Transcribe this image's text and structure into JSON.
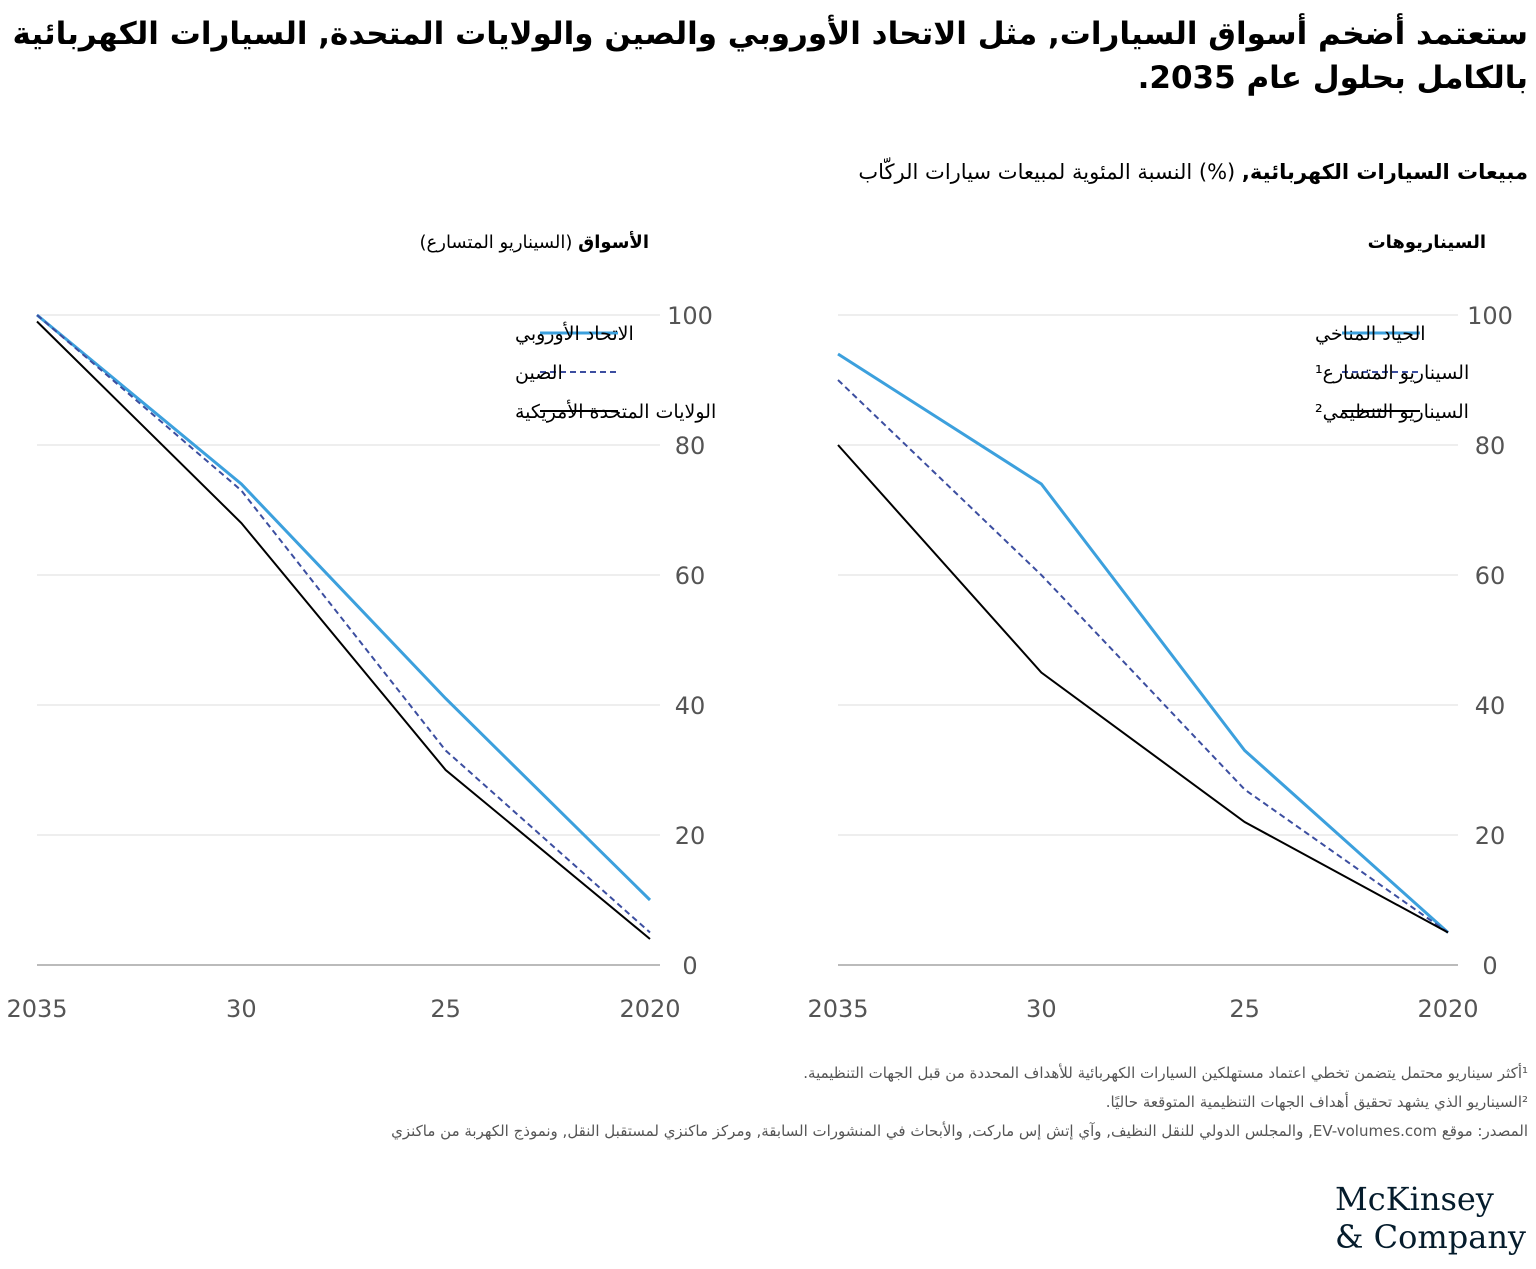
{
  "title": "ستعتمد أضخم أسواق السيارات, مثل الاتحاد الأوروبي والصين والولايات المتحدة, السيارات الكهربائية بالكامل بحلول عام 2035.",
  "subtitle_bold": "مبيعات السيارات الكهربائية,",
  "subtitle_rest": " (%) النسبة المئوية لمبيعات سيارات الركّاب",
  "footnotes": [
    "¹أكثر سيناريو محتمل يتضمن تخطي اعتماد مستهلكين السيارات الكهربائية للأهداف المحددة من قبل الجهات التنظيمية.",
    "²السيناريو الذي يشهد تحقيق أهداف الجهات التنظيمية المتوقعة حاليًا.",
    "المصدر: موقع EV-volumes.com, والمجلس الدولي للنقل النظيف, وآي إتش إس ماركت, والأبحاث في المنشورات السابقة, ومركز ماكنزي لمستقبل النقل, ونموذج الكهربة من ماكنزي"
  ],
  "logo": "McKinsey & Company",
  "chart_data": [
    {
      "type": "line",
      "title_bold": "الأسواق",
      "title_rest": " (السيناريو المتسارع)",
      "categories": [
        "2035",
        "30",
        "25",
        "2020"
      ],
      "x": [
        2035,
        2030,
        2025,
        2020
      ],
      "ylim": [
        0,
        100
      ],
      "yticks": [
        "0",
        "20",
        "40",
        "60",
        "80",
        "100"
      ],
      "legend": "top-right",
      "series": [
        {
          "name": "الاتحاد الأوروبي",
          "style": "solid",
          "color": "#3ca0dd",
          "values": [
            100,
            74,
            41,
            10
          ]
        },
        {
          "name": "الصين",
          "style": "dashed",
          "color": "#3c4ea0",
          "values": [
            100,
            73,
            33,
            5
          ]
        },
        {
          "name": "الولايات المتحدة الأمريكية",
          "style": "solid",
          "color": "#000000",
          "values": [
            99,
            68,
            30,
            4
          ]
        }
      ]
    },
    {
      "type": "line",
      "title_bold": "السيناريوهات",
      "title_rest": "",
      "categories": [
        "2035",
        "30",
        "25",
        "2020"
      ],
      "x": [
        2035,
        2030,
        2025,
        2020
      ],
      "ylim": [
        0,
        100
      ],
      "yticks": [
        "0",
        "20",
        "40",
        "60",
        "80",
        "100"
      ],
      "legend": "top-right",
      "series": [
        {
          "name": "الحياد المناخي",
          "style": "solid",
          "color": "#3ca0dd",
          "values": [
            94,
            74,
            33,
            5
          ]
        },
        {
          "name": "السيناريو المتسارع¹",
          "style": "dashed",
          "color": "#3c4ea0",
          "values": [
            90,
            60,
            27,
            5
          ]
        },
        {
          "name": "السيناريو التنظيمي²",
          "style": "solid",
          "color": "#000000",
          "values": [
            80,
            45,
            22,
            5
          ]
        }
      ]
    }
  ]
}
